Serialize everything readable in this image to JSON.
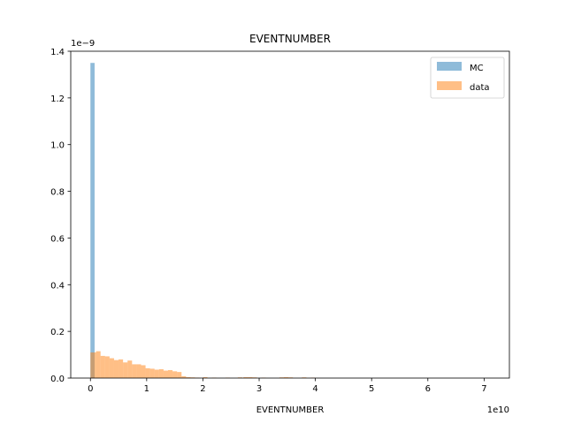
{
  "chart_data": {
    "type": "histogram",
    "title": "EVENTNUMBER",
    "xlabel": "EVENTNUMBER",
    "ylabel": "",
    "x_offset_text": "1e10",
    "y_offset_text": "1e−9",
    "xlim": [
      -0.35,
      7.45
    ],
    "ylim": [
      0,
      1.4
    ],
    "x_ticks": [
      0,
      1,
      2,
      3,
      4,
      5,
      6,
      7
    ],
    "y_ticks": [
      0.0,
      0.2,
      0.4,
      0.6,
      0.8,
      1.0,
      1.2,
      1.4
    ],
    "y_tick_labels": [
      "0.0",
      "0.2",
      "0.4",
      "0.6",
      "0.8",
      "1.0",
      "1.2",
      "1.4"
    ],
    "grid": false,
    "legend_position": "top-right",
    "series": [
      {
        "name": "MC",
        "color": "#1f77b4",
        "opacity": 0.5,
        "bins": [
          {
            "x0": 0.0,
            "x1": 0.074,
            "value": 1.35
          }
        ]
      },
      {
        "name": "data",
        "color": "#ff7f0e",
        "opacity": 0.5,
        "bins": [
          {
            "x0": 0.0,
            "x1": 0.1,
            "value": 0.11
          },
          {
            "x0": 0.1,
            "x1": 0.18,
            "value": 0.115
          },
          {
            "x0": 0.18,
            "x1": 0.26,
            "value": 0.095
          },
          {
            "x0": 0.26,
            "x1": 0.34,
            "value": 0.093
          },
          {
            "x0": 0.34,
            "x1": 0.42,
            "value": 0.085
          },
          {
            "x0": 0.42,
            "x1": 0.5,
            "value": 0.077
          },
          {
            "x0": 0.5,
            "x1": 0.58,
            "value": 0.08
          },
          {
            "x0": 0.58,
            "x1": 0.66,
            "value": 0.067
          },
          {
            "x0": 0.66,
            "x1": 0.74,
            "value": 0.075
          },
          {
            "x0": 0.74,
            "x1": 0.82,
            "value": 0.059
          },
          {
            "x0": 0.82,
            "x1": 0.9,
            "value": 0.059
          },
          {
            "x0": 0.9,
            "x1": 0.98,
            "value": 0.055
          },
          {
            "x0": 0.98,
            "x1": 1.06,
            "value": 0.042
          },
          {
            "x0": 1.06,
            "x1": 1.14,
            "value": 0.04
          },
          {
            "x0": 1.14,
            "x1": 1.22,
            "value": 0.036
          },
          {
            "x0": 1.22,
            "x1": 1.3,
            "value": 0.038
          },
          {
            "x0": 1.3,
            "x1": 1.38,
            "value": 0.032
          },
          {
            "x0": 1.38,
            "x1": 1.46,
            "value": 0.034
          },
          {
            "x0": 1.46,
            "x1": 1.54,
            "value": 0.029
          },
          {
            "x0": 1.54,
            "x1": 1.62,
            "value": 0.026
          },
          {
            "x0": 1.62,
            "x1": 1.7,
            "value": 0.008
          },
          {
            "x0": 1.7,
            "x1": 1.78,
            "value": 0.004
          },
          {
            "x0": 1.78,
            "x1": 1.86,
            "value": 0.003
          },
          {
            "x0": 1.86,
            "x1": 1.94,
            "value": 0.002
          },
          {
            "x0": 2.0,
            "x1": 2.08,
            "value": 0.004
          },
          {
            "x0": 2.16,
            "x1": 2.24,
            "value": 0.002
          },
          {
            "x0": 2.4,
            "x1": 2.48,
            "value": 0.002
          },
          {
            "x0": 2.62,
            "x1": 2.7,
            "value": 0.003
          },
          {
            "x0": 2.72,
            "x1": 2.8,
            "value": 0.004
          },
          {
            "x0": 2.8,
            "x1": 2.88,
            "value": 0.004
          },
          {
            "x0": 2.88,
            "x1": 2.96,
            "value": 0.003
          },
          {
            "x0": 3.04,
            "x1": 3.12,
            "value": 0.002
          },
          {
            "x0": 3.36,
            "x1": 3.44,
            "value": 0.003
          },
          {
            "x0": 3.44,
            "x1": 3.52,
            "value": 0.004
          },
          {
            "x0": 3.52,
            "x1": 3.6,
            "value": 0.003
          },
          {
            "x0": 3.76,
            "x1": 3.84,
            "value": 0.003
          },
          {
            "x0": 3.92,
            "x1": 4.0,
            "value": 0.002
          }
        ]
      }
    ]
  }
}
